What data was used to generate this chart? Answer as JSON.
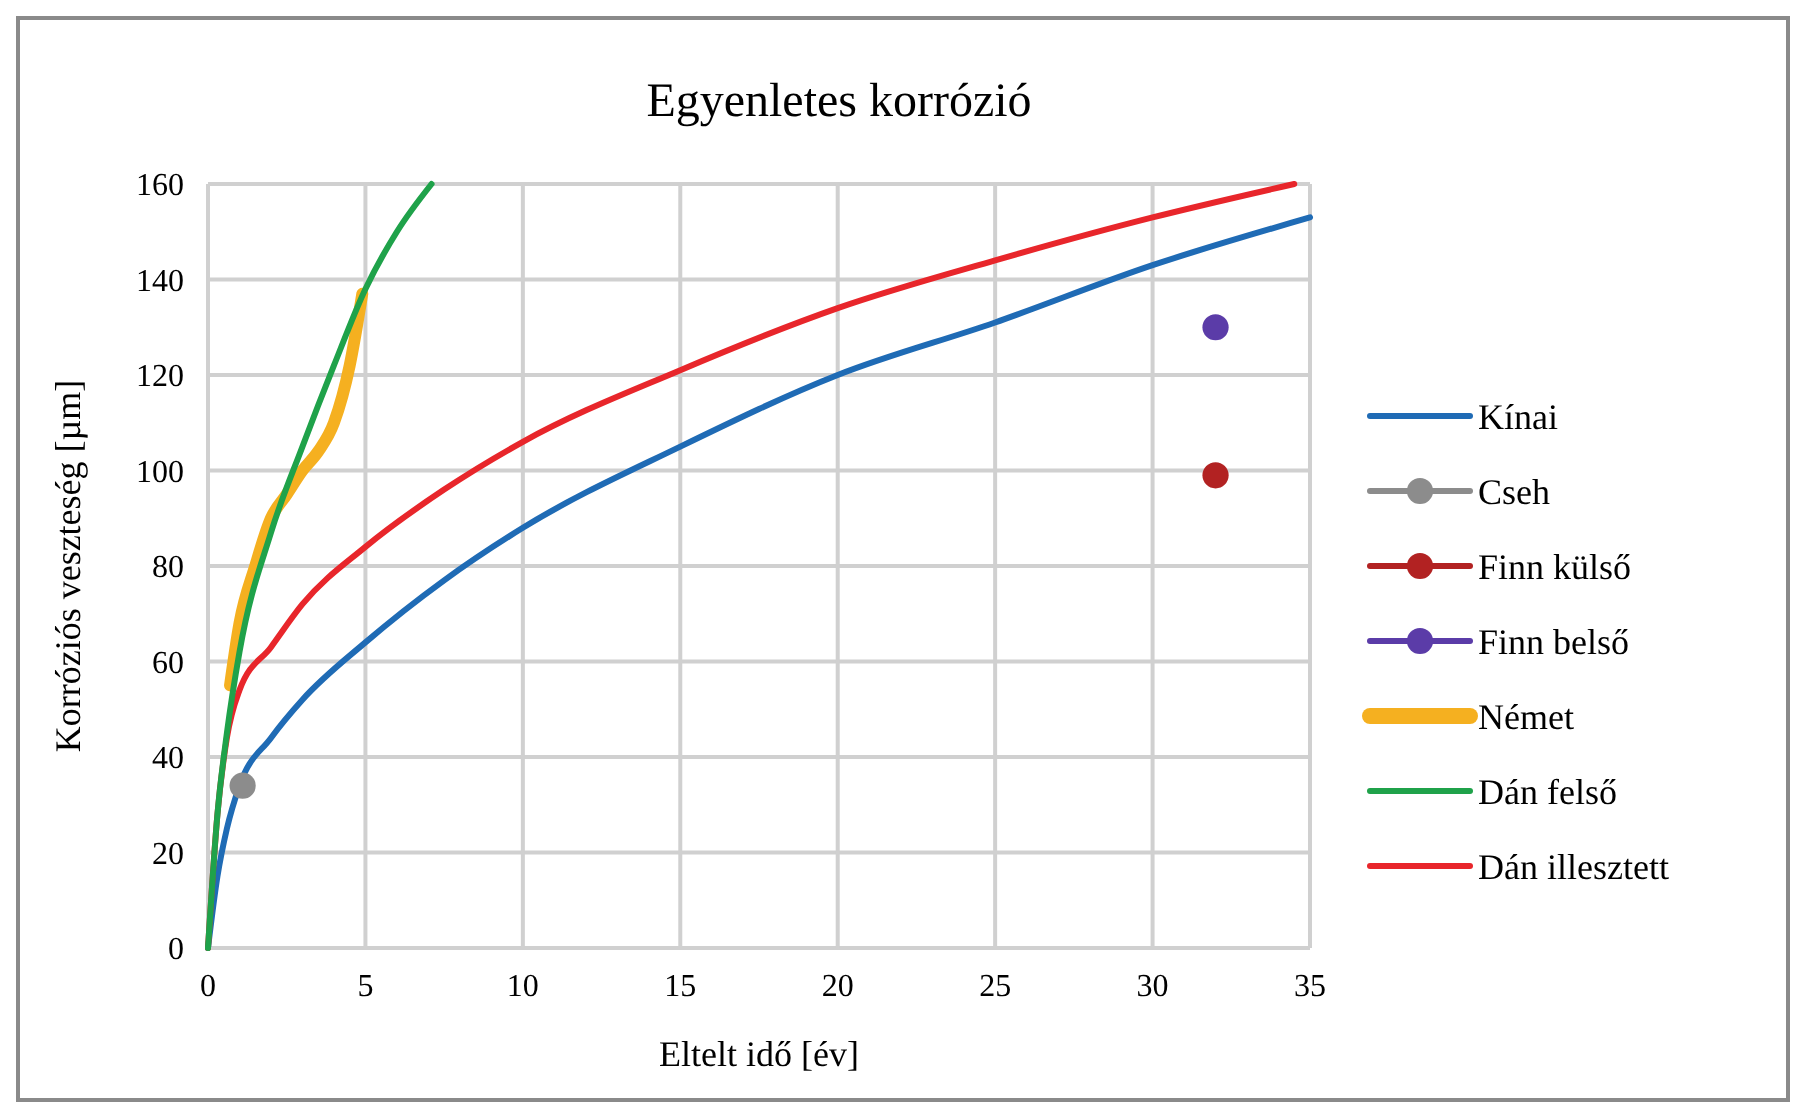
{
  "chart_data": {
    "type": "line",
    "title": "Egyenletes korrózió",
    "xlabel": "Eltelt idő [év]",
    "ylabel": "Korróziós veszteség [µm]",
    "xlim": [
      0,
      35
    ],
    "ylim": [
      0,
      160
    ],
    "xticks": [
      0,
      5,
      10,
      15,
      20,
      25,
      30,
      35
    ],
    "yticks": [
      0,
      20,
      40,
      60,
      80,
      100,
      120,
      140,
      160
    ],
    "grid": true,
    "legend": "right",
    "series": [
      {
        "name": "Kínai",
        "color": "#1f6bb5",
        "x": [
          0,
          0.3,
          0.6,
          1,
          2,
          3,
          5,
          7.5,
          10,
          15,
          20,
          25,
          30,
          35
        ],
        "values": [
          0,
          15,
          25,
          34,
          44,
          52,
          64,
          77,
          88,
          105,
          120,
          131,
          143,
          153
        ]
      },
      {
        "name": "Cseh",
        "color": "#8c8c8c",
        "type": "scatter",
        "marker": "circle",
        "x": [
          1.1
        ],
        "values": [
          34
        ]
      },
      {
        "name": "Finn külső",
        "color": "#b22222",
        "type": "scatter",
        "marker": "circle",
        "x": [
          32
        ],
        "values": [
          99
        ]
      },
      {
        "name": "Finn belső",
        "color": "#5b3ca8",
        "type": "scatter",
        "marker": "circle",
        "x": [
          32
        ],
        "values": [
          130
        ]
      },
      {
        "name": "Német",
        "color": "#f5b020",
        "x": [
          0.7,
          1,
          1.5,
          2,
          2.5,
          3,
          3.5,
          4,
          4.5,
          4.9
        ],
        "values": [
          55,
          68,
          80,
          90,
          95,
          100,
          104,
          110,
          122,
          137
        ]
      },
      {
        "name": "Dán felső",
        "color": "#1fa24a",
        "x": [
          0,
          0.3,
          0.6,
          1,
          2,
          3,
          4,
          5,
          6,
          7.1
        ],
        "values": [
          0,
          28,
          45,
          62,
          87,
          105,
          122,
          138,
          150,
          160
        ]
      },
      {
        "name": "Dán illesztett",
        "color": "#e8262b",
        "x": [
          0,
          0.3,
          0.6,
          1,
          2,
          3,
          5,
          7.5,
          10,
          15,
          20,
          25,
          30,
          34.5
        ],
        "values": [
          0,
          28,
          44,
          54,
          63,
          72,
          84,
          96,
          106,
          121,
          134,
          144,
          153,
          160
        ]
      }
    ]
  }
}
